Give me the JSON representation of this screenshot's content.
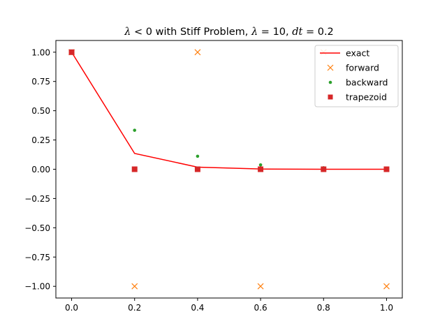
{
  "chart_data": {
    "type": "line",
    "title": {
      "parts": [
        {
          "text": "λ",
          "math": true
        },
        {
          "text": " < 0 with Stiff Problem, ",
          "math": false
        },
        {
          "text": "λ",
          "math": true
        },
        {
          "text": " = 10, ",
          "math": false
        },
        {
          "text": "dt",
          "math": true
        },
        {
          "text": " = 0.2",
          "math": false
        }
      ]
    },
    "xlabel": "",
    "ylabel": "",
    "xlim": [
      -0.05,
      1.05
    ],
    "ylim": [
      -1.1,
      1.1
    ],
    "x_ticks": [
      0.0,
      0.2,
      0.4,
      0.6,
      0.8,
      1.0
    ],
    "x_tick_labels": [
      "0.0",
      "0.2",
      "0.4",
      "0.6",
      "0.8",
      "1.0"
    ],
    "y_ticks": [
      1.0,
      0.75,
      0.5,
      0.25,
      0.0,
      -0.25,
      -0.5,
      -0.75,
      -1.0
    ],
    "y_tick_labels": [
      "1.00",
      "0.75",
      "0.50",
      "0.25",
      "0.00",
      "−0.25",
      "−0.50",
      "−0.75",
      "−1.00"
    ],
    "grid": false,
    "legend_position": "top-right",
    "series": [
      {
        "name": "exact",
        "marker": "line",
        "color": "#ff0000",
        "x": [
          0.0,
          0.2,
          0.4,
          0.6,
          0.8,
          1.0
        ],
        "y": [
          1.0,
          0.135,
          0.018,
          0.002,
          0.0,
          0.0
        ]
      },
      {
        "name": "forward",
        "marker": "x",
        "color": "#ff7f0e",
        "x": [
          0.0,
          0.2,
          0.4,
          0.6,
          0.8,
          1.0
        ],
        "y": [
          1.0,
          -1.0,
          1.0,
          -1.0,
          1.0,
          -1.0
        ]
      },
      {
        "name": "backward",
        "marker": "dot",
        "color": "#2ca02c",
        "x": [
          0.0,
          0.2,
          0.4,
          0.6,
          0.8,
          1.0
        ],
        "y": [
          1.0,
          0.333,
          0.111,
          0.037,
          0.012,
          0.004
        ]
      },
      {
        "name": "trapezoid",
        "marker": "square",
        "color": "#d62728",
        "x": [
          0.0,
          0.2,
          0.4,
          0.6,
          0.8,
          1.0
        ],
        "y": [
          1.0,
          0.0,
          0.0,
          0.0,
          0.0,
          0.0
        ]
      }
    ]
  }
}
